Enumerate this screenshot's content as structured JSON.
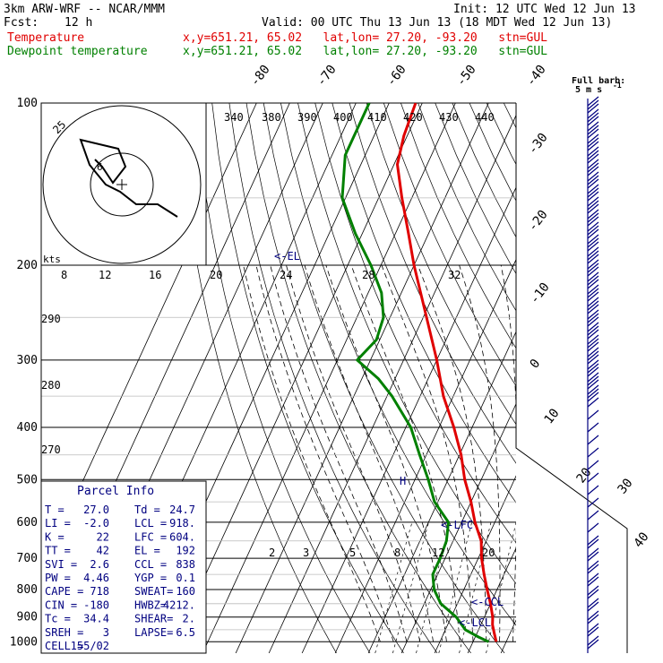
{
  "header": {
    "model": "3km ARW-WRF -- NCAR/MMM",
    "init": "Init: 12 UTC Wed 12 Jun 13",
    "fcst_label": "Fcst:",
    "fcst_value": "12 h",
    "valid": "Valid: 00 UTC Thu 13 Jun 13 (18 MDT Wed 12 Jun 13)"
  },
  "legend": [
    {
      "name": "Temperature",
      "info": "x,y=651.21, 65.02   lat,lon= 27.20, -93.20   stn=GUL",
      "color": "#e00000"
    },
    {
      "name": "Dewpoint temperature",
      "info": "x,y=651.21, 65.02   lat,lon= 27.20, -93.20   stn=GUL",
      "color": "#008000"
    }
  ],
  "barb_key": {
    "title": "Full barb:",
    "value": "5 m s",
    "sup": "-1"
  },
  "pressure_labels": [
    "100",
    "200",
    "300",
    "400",
    "500",
    "600",
    "700",
    "800",
    "900",
    "1000"
  ],
  "isotherm_labels": [
    "-80",
    "-70",
    "-60",
    "-50",
    "-40",
    "-30",
    "-20",
    "-10",
    "0",
    "10",
    "20",
    "30",
    "40"
  ],
  "theta_e_labels": [
    "340",
    "380",
    "390",
    "400",
    "410",
    "420",
    "430",
    "440"
  ],
  "theta_labels": [
    "290",
    "280",
    "270"
  ],
  "mixing_ratio_top_labels": [
    "8",
    "12",
    "16",
    "20",
    "24",
    "28",
    "32"
  ],
  "mixing_ratio_low_labels": [
    "2",
    "3",
    "5",
    "8",
    "12",
    "20"
  ],
  "level_markers": [
    "<-EL",
    "<-LFC",
    "<-CCL",
    "<-LCL",
    "H"
  ],
  "hodograph": {
    "ring_label": "25",
    "mark": "6",
    "units": "kts"
  },
  "parcel": {
    "title": "Parcel Info",
    "rows": [
      [
        "T  =",
        "27.0",
        "Td =",
        "24.7"
      ],
      [
        "LI =",
        "-2.0",
        "LCL =",
        "918."
      ],
      [
        "K  =",
        "22",
        "LFC =",
        "604."
      ],
      [
        "TT =",
        "42",
        "EL =",
        "192"
      ],
      [
        "SVI =",
        "2.6",
        "CCL =",
        "838"
      ],
      [
        "PW =",
        "4.46",
        "YGP =",
        "0.1"
      ],
      [
        "CAPE =",
        "718",
        "SWEAT=",
        "160"
      ],
      [
        "CIN =",
        "-180",
        "HWBZ=",
        "4212."
      ],
      [
        "Tc =",
        "34.4",
        "SHEAR=",
        "2."
      ],
      [
        "SREH =",
        "3",
        "LAPSE=",
        "6.5"
      ],
      [
        "CELL =",
        "155/02",
        "",
        ""
      ]
    ]
  },
  "chart_data": {
    "type": "line",
    "diagram": "skew-T log-p",
    "y_axis": "pressure (hPa)",
    "x_axis": "temperature (°C)",
    "series": [
      {
        "name": "Temperature",
        "color": "#e00000",
        "points": [
          [
            1000,
            27.0
          ],
          [
            960,
            25.0
          ],
          [
            930,
            23.5
          ],
          [
            900,
            22.5
          ],
          [
            850,
            20.0
          ],
          [
            800,
            17.0
          ],
          [
            750,
            14.0
          ],
          [
            700,
            11.0
          ],
          [
            650,
            8.5
          ],
          [
            600,
            4.0
          ],
          [
            550,
            0.0
          ],
          [
            500,
            -5.0
          ],
          [
            450,
            -9.5
          ],
          [
            400,
            -15.5
          ],
          [
            350,
            -23.0
          ],
          [
            300,
            -30.0
          ],
          [
            250,
            -39.0
          ],
          [
            200,
            -50.0
          ],
          [
            175,
            -56.0
          ],
          [
            150,
            -63.0
          ],
          [
            130,
            -69.0
          ],
          [
            115,
            -71.0
          ],
          [
            100,
            -72.0
          ]
        ]
      },
      {
        "name": "Dewpoint temperature",
        "color": "#008000",
        "points": [
          [
            1000,
            24.7
          ],
          [
            980,
            21.0
          ],
          [
            950,
            16.0
          ],
          [
            900,
            11.5
          ],
          [
            850,
            5.0
          ],
          [
            800,
            1.0
          ],
          [
            750,
            -1.5
          ],
          [
            700,
            -1.5
          ],
          [
            650,
            -2.0
          ],
          [
            600,
            -4.0
          ],
          [
            550,
            -11.0
          ],
          [
            500,
            -16.0
          ],
          [
            450,
            -22.0
          ],
          [
            400,
            -28.5
          ],
          [
            350,
            -38.5
          ],
          [
            325,
            -45.0
          ],
          [
            300,
            -54.0
          ],
          [
            275,
            -51.0
          ],
          [
            250,
            -52.0
          ],
          [
            225,
            -56.0
          ],
          [
            200,
            -63.0
          ],
          [
            175,
            -72.0
          ],
          [
            150,
            -81.0
          ],
          [
            125,
            -86.0
          ],
          [
            100,
            -86.0
          ]
        ]
      }
    ]
  }
}
